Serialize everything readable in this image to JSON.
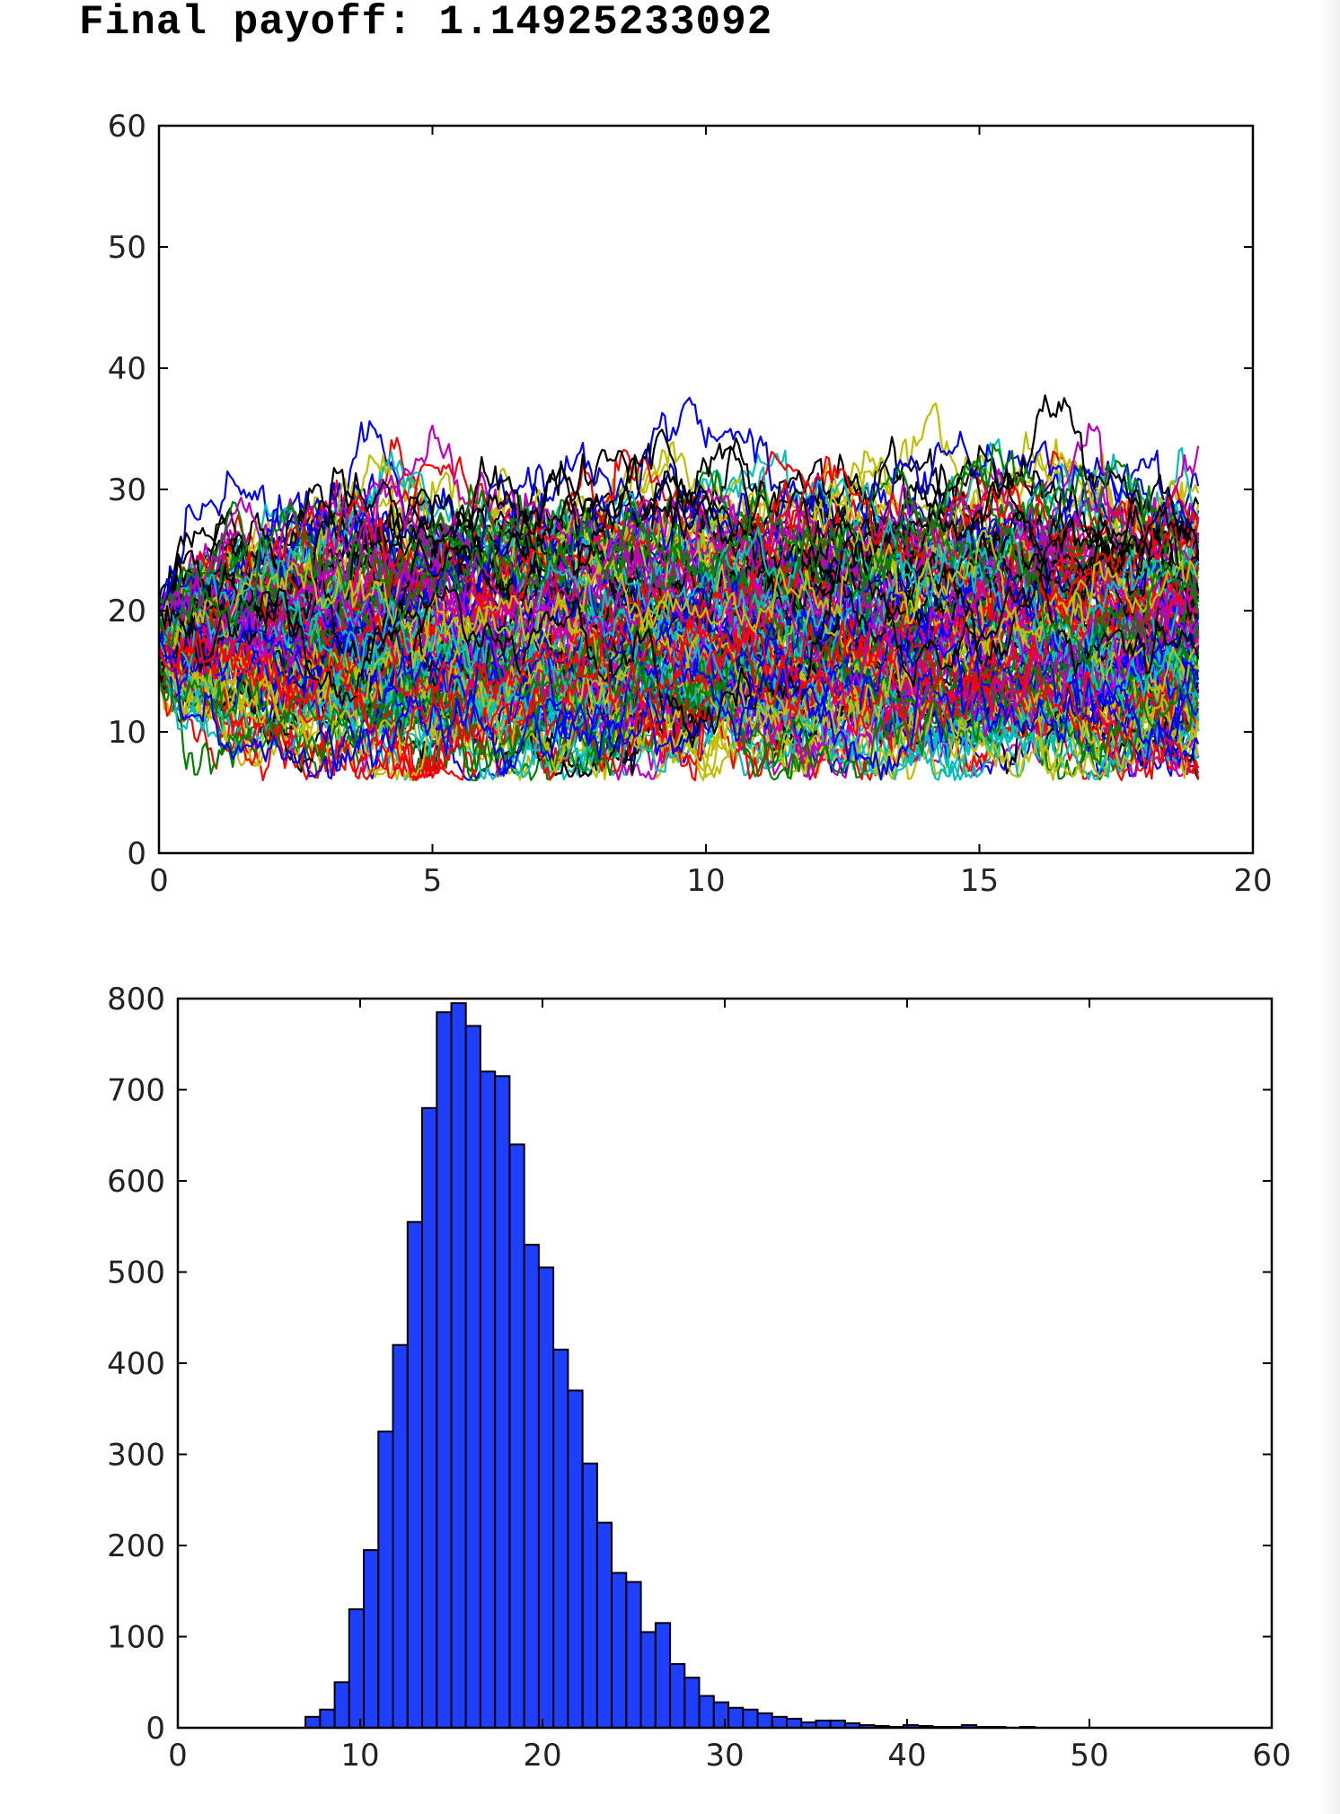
{
  "output": {
    "text": "Final payoff: 1.14925233092"
  },
  "chart_data": [
    {
      "type": "line",
      "title": "",
      "xlabel": "",
      "ylabel": "",
      "xlim": [
        0,
        20
      ],
      "ylim": [
        0,
        60
      ],
      "x_end": 19,
      "xticks": [
        0,
        5,
        10,
        15,
        20
      ],
      "yticks": [
        0,
        10,
        20,
        30,
        40,
        50,
        60
      ],
      "grid": false,
      "legend": "none",
      "series_count": 150,
      "start_value": 18,
      "colors": [
        "#0000ff",
        "#008000",
        "#ff0000",
        "#00bfbf",
        "#bf00bf",
        "#bfbf00",
        "#000000"
      ]
    },
    {
      "type": "bar",
      "title": "",
      "xlabel": "",
      "ylabel": "",
      "xlim": [
        0,
        60
      ],
      "ylim": [
        0,
        800
      ],
      "xticks": [
        0,
        10,
        20,
        30,
        40,
        50,
        60
      ],
      "yticks": [
        0,
        100,
        200,
        300,
        400,
        500,
        600,
        700,
        800
      ],
      "grid": false,
      "legend": "none",
      "bar_color": "#1f3fff",
      "bin_start": 7,
      "bin_width": 0.8,
      "values": [
        12,
        20,
        50,
        130,
        195,
        325,
        420,
        555,
        680,
        785,
        795,
        770,
        720,
        715,
        640,
        530,
        505,
        415,
        370,
        290,
        225,
        170,
        160,
        105,
        115,
        70,
        55,
        35,
        28,
        22,
        20,
        16,
        12,
        10,
        6,
        8,
        8,
        5,
        3,
        2,
        1,
        3,
        2,
        1,
        1,
        3,
        1,
        1,
        0,
        1
      ]
    }
  ]
}
